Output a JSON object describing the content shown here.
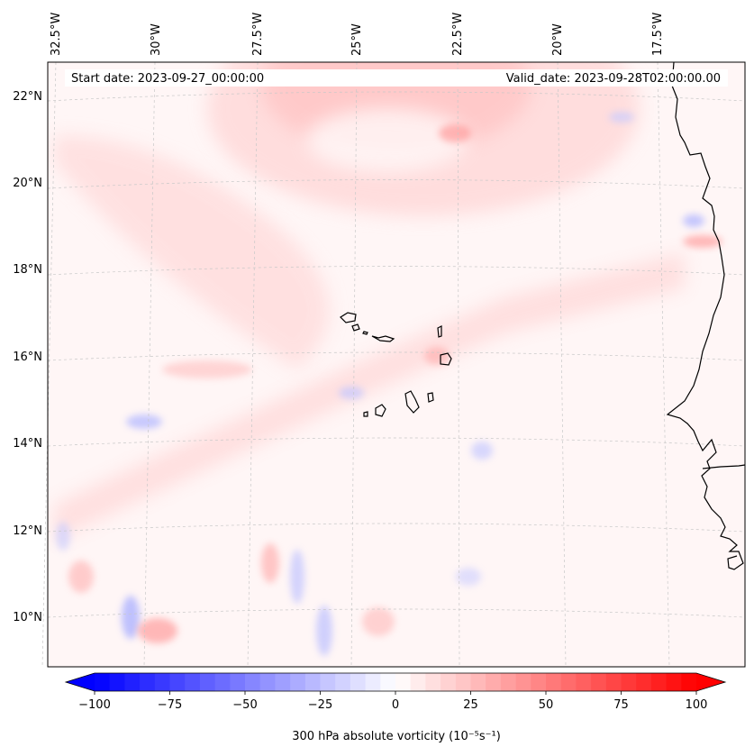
{
  "map": {
    "start_date_label": "Start date: 2023-09-27_00:00:00",
    "valid_date_label": "Valid_date: 2023-09-28T02:00:00.00",
    "extent": {
      "lon_west": -33.0,
      "lon_east": -15.2,
      "lat_south": 8.9,
      "lat_north": 22.8
    },
    "lon_ticks": [
      {
        "value": -32.5,
        "label": "32.5°W"
      },
      {
        "value": -30.0,
        "label": "30°W"
      },
      {
        "value": -27.5,
        "label": "27.5°W"
      },
      {
        "value": -25.0,
        "label": "25°W"
      },
      {
        "value": -22.5,
        "label": "22.5°W"
      },
      {
        "value": -20.0,
        "label": "20°W"
      },
      {
        "value": -17.5,
        "label": "17.5°W"
      }
    ],
    "lat_ticks": [
      {
        "value": 22,
        "label": "22°N"
      },
      {
        "value": 20,
        "label": "20°N"
      },
      {
        "value": 18,
        "label": "18°N"
      },
      {
        "value": 16,
        "label": "16°N"
      },
      {
        "value": 14,
        "label": "14°N"
      },
      {
        "value": 12,
        "label": "12°N"
      },
      {
        "value": 10,
        "label": "10°N"
      }
    ]
  },
  "colorbar": {
    "label": "300 hPa absolute vorticity (10⁻⁵s⁻¹)",
    "min": -100,
    "max": 100,
    "ticks": [
      {
        "value": -100,
        "label": "−100"
      },
      {
        "value": -75,
        "label": "−75"
      },
      {
        "value": -50,
        "label": "−50"
      },
      {
        "value": -25,
        "label": "−25"
      },
      {
        "value": 0,
        "label": "0"
      },
      {
        "value": 25,
        "label": "25"
      },
      {
        "value": 50,
        "label": "50"
      },
      {
        "value": 75,
        "label": "75"
      },
      {
        "value": 100,
        "label": "100"
      }
    ],
    "colors": {
      "negative": "#0000ff",
      "zero": "#ffffff",
      "positive": "#ff0000"
    }
  }
}
